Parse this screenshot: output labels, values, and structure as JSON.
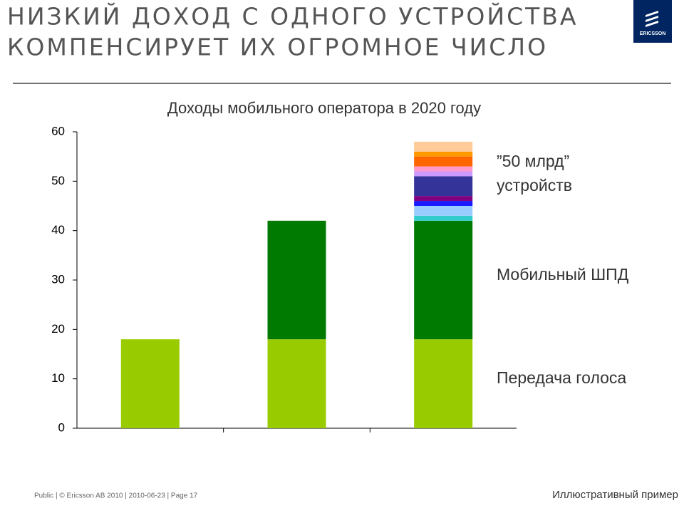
{
  "header": {
    "title_lines": [
      "НИЗКИЙ ДОХОД С ОДНОГО УСТРОЙСТВА",
      "КОМПЕНСИРУЕТ ИХ ОГРОМНОЕ ЧИСЛО"
    ],
    "logo": "ERICSSON"
  },
  "chart_data": {
    "type": "stacked_bar",
    "title": "Доходы мобильного оператора в 2020 году",
    "categories": [
      null,
      null,
      null
    ],
    "series": [
      {
        "color": "#99cc00",
        "values": [
          18,
          18,
          18
        ]
      },
      {
        "color": "#007a00",
        "values": [
          0,
          24,
          24
        ]
      },
      {
        "color": "#33cccc",
        "values": [
          0,
          0,
          1
        ]
      },
      {
        "color": "#99ccff",
        "values": [
          0,
          0,
          2
        ]
      },
      {
        "color": "#1a1aff",
        "values": [
          0,
          0,
          1
        ]
      },
      {
        "color": "#800080",
        "values": [
          0,
          0,
          1
        ]
      },
      {
        "color": "#333399",
        "values": [
          0,
          0,
          4
        ]
      },
      {
        "color": "#cc99ff",
        "values": [
          0,
          0,
          1
        ]
      },
      {
        "color": "#ff99cc",
        "values": [
          0,
          0,
          1
        ]
      },
      {
        "color": "#ff6600",
        "values": [
          0,
          0,
          2
        ]
      },
      {
        "color": "#ff9900",
        "values": [
          0,
          0,
          1
        ]
      },
      {
        "color": "#ffcc99",
        "values": [
          0,
          0,
          2
        ]
      }
    ],
    "ylim": [
      0,
      60
    ],
    "yticks": [
      0,
      10,
      20,
      30,
      40,
      50,
      60
    ],
    "grid": false,
    "annotations": [
      [
        "”50 млрд”",
        "устройств"
      ],
      [
        "Мобильный ШПД"
      ],
      [
        "Передача голоса"
      ]
    ]
  },
  "footer": {
    "left": "Public  |  © Ericsson AB 2010  |  2010-06-23  |  Page 17",
    "right": "Иллюстративный пример"
  }
}
